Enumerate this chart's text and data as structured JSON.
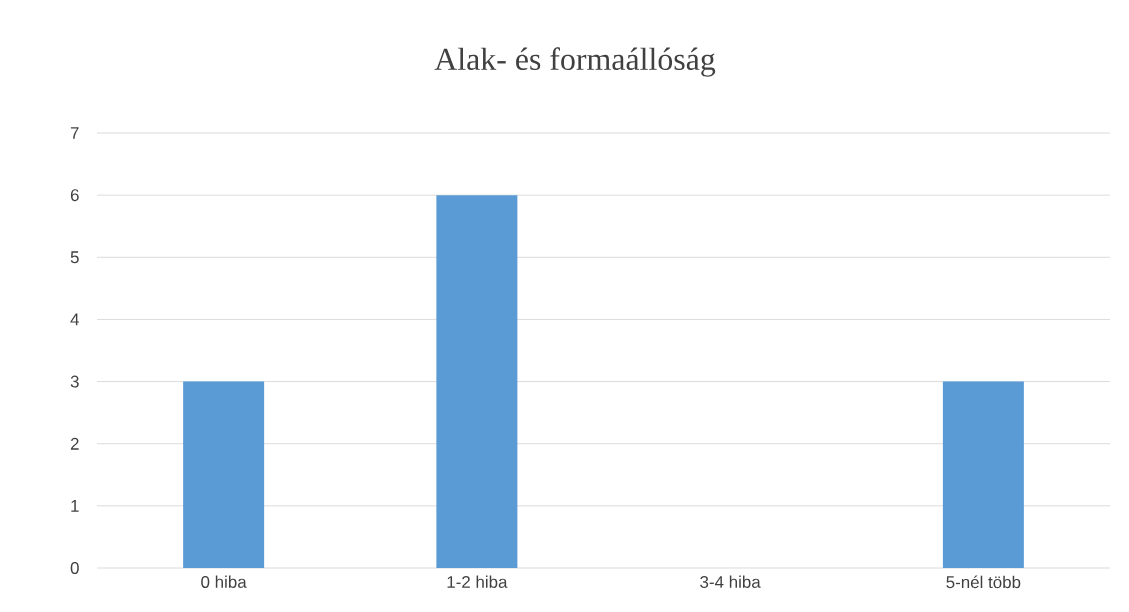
{
  "chart_data": {
    "type": "bar",
    "title": "Alak- és formaállóság",
    "categories": [
      "0 hiba",
      "1-2 hiba",
      "3-4 hiba",
      "5-nél több"
    ],
    "values": [
      3,
      6,
      0,
      3
    ],
    "color": "#5b9bd5",
    "ylim": [
      0,
      7
    ],
    "yticks": [
      0,
      1,
      2,
      3,
      4,
      5,
      6,
      7
    ],
    "grid": "y"
  }
}
